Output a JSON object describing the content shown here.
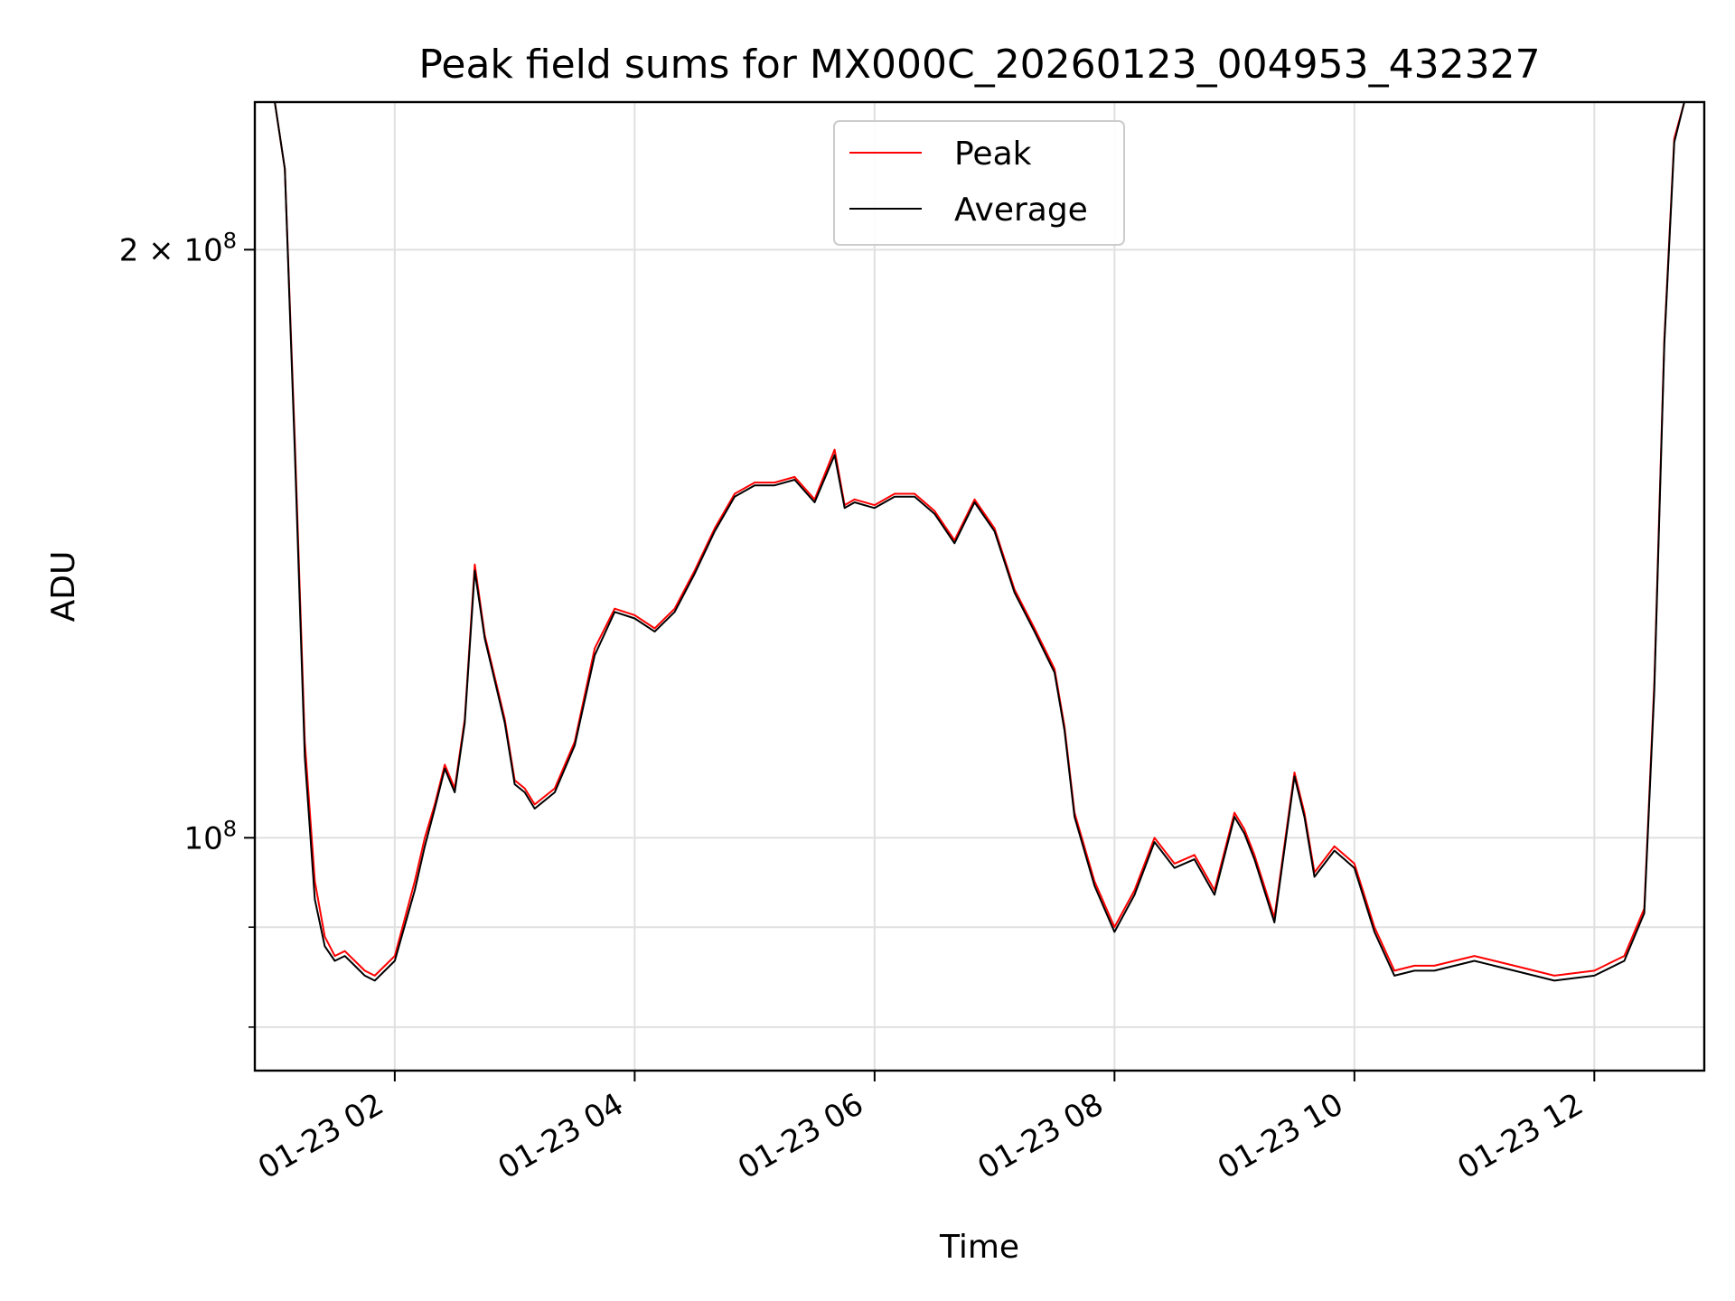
{
  "chart_data": {
    "type": "line",
    "title": "Peak field sums for MX000C_20260123_004953_432327",
    "xlabel": "Time",
    "ylabel": "ADU",
    "y_scale": "log",
    "ylim": [
      76000000,
      238000000
    ],
    "xlim": [
      "2026-01-23 00:50",
      "2026-01-23 12:55"
    ],
    "grid": true,
    "legend_position": "upper center",
    "x_ticks": [
      {
        "value": "2026-01-23 02:00",
        "label": "01-23 02"
      },
      {
        "value": "2026-01-23 04:00",
        "label": "01-23 04"
      },
      {
        "value": "2026-01-23 06:00",
        "label": "01-23 06"
      },
      {
        "value": "2026-01-23 08:00",
        "label": "01-23 08"
      },
      {
        "value": "2026-01-23 10:00",
        "label": "01-23 10"
      },
      {
        "value": "2026-01-23 12:00",
        "label": "01-23 12"
      }
    ],
    "y_ticks": [
      {
        "value": 100000000,
        "base": "10",
        "exp": "8",
        "coef": ""
      },
      {
        "value": 200000000,
        "base": "10",
        "exp": "8",
        "coef": "2 × "
      }
    ],
    "y_minor_ticks": [
      80000000,
      90000000
    ],
    "series": [
      {
        "name": "Peak",
        "color": "#ff0000",
        "x": [
          "2026-01-23 00:50",
          "2026-01-23 01:00",
          "2026-01-23 01:05",
          "2026-01-23 01:10",
          "2026-01-23 01:15",
          "2026-01-23 01:20",
          "2026-01-23 01:25",
          "2026-01-23 01:30",
          "2026-01-23 01:35",
          "2026-01-23 01:40",
          "2026-01-23 01:45",
          "2026-01-23 01:50",
          "2026-01-23 02:00",
          "2026-01-23 02:10",
          "2026-01-23 02:15",
          "2026-01-23 02:20",
          "2026-01-23 02:25",
          "2026-01-23 02:30",
          "2026-01-23 02:35",
          "2026-01-23 02:40",
          "2026-01-23 02:45",
          "2026-01-23 02:55",
          "2026-01-23 03:00",
          "2026-01-23 03:05",
          "2026-01-23 03:10",
          "2026-01-23 03:20",
          "2026-01-23 03:30",
          "2026-01-23 03:40",
          "2026-01-23 03:50",
          "2026-01-23 04:00",
          "2026-01-23 04:10",
          "2026-01-23 04:20",
          "2026-01-23 04:30",
          "2026-01-23 04:40",
          "2026-01-23 04:50",
          "2026-01-23 05:00",
          "2026-01-23 05:10",
          "2026-01-23 05:20",
          "2026-01-23 05:30",
          "2026-01-23 05:40",
          "2026-01-23 05:45",
          "2026-01-23 05:50",
          "2026-01-23 06:00",
          "2026-01-23 06:10",
          "2026-01-23 06:20",
          "2026-01-23 06:30",
          "2026-01-23 06:40",
          "2026-01-23 06:50",
          "2026-01-23 07:00",
          "2026-01-23 07:10",
          "2026-01-23 07:20",
          "2026-01-23 07:30",
          "2026-01-23 07:35",
          "2026-01-23 07:40",
          "2026-01-23 07:50",
          "2026-01-23 08:00",
          "2026-01-23 08:10",
          "2026-01-23 08:20",
          "2026-01-23 08:30",
          "2026-01-23 08:40",
          "2026-01-23 08:50",
          "2026-01-23 09:00",
          "2026-01-23 09:05",
          "2026-01-23 09:10",
          "2026-01-23 09:20",
          "2026-01-23 09:30",
          "2026-01-23 09:35",
          "2026-01-23 09:40",
          "2026-01-23 09:50",
          "2026-01-23 09:55",
          "2026-01-23 10:00",
          "2026-01-23 10:10",
          "2026-01-23 10:20",
          "2026-01-23 10:30",
          "2026-01-23 10:40",
          "2026-01-23 11:00",
          "2026-01-23 11:20",
          "2026-01-23 11:40",
          "2026-01-23 12:00",
          "2026-01-23 12:15",
          "2026-01-23 12:25",
          "2026-01-23 12:30",
          "2026-01-23 12:35",
          "2026-01-23 12:40",
          "2026-01-23 12:45",
          "2026-01-23 12:55"
        ],
        "y": [
          238000000,
          238000000,
          220000000,
          160000000,
          112000000,
          95000000,
          89000000,
          87000000,
          87500000,
          86500000,
          85500000,
          85000000,
          87000000,
          95000000,
          100000000,
          104000000,
          109000000,
          106000000,
          115000000,
          138000000,
          127000000,
          115000000,
          107000000,
          106000000,
          104000000,
          106000000,
          112000000,
          125000000,
          131000000,
          130000000,
          128000000,
          131000000,
          137000000,
          144000000,
          150000000,
          152000000,
          152000000,
          153000000,
          149000000,
          158000000,
          148000000,
          149000000,
          148000000,
          150000000,
          150000000,
          147000000,
          142000000,
          149000000,
          144000000,
          134000000,
          128000000,
          122000000,
          114000000,
          103000000,
          95000000,
          90000000,
          94000000,
          100000000,
          97000000,
          98000000,
          94000000,
          103000000,
          101000000,
          98000000,
          91000000,
          108000000,
          103000000,
          96000000,
          99000000,
          98000000,
          97000000,
          90000000,
          85500000,
          86000000,
          86000000,
          87000000,
          86000000,
          85000000,
          85500000,
          87000000,
          92000000,
          120000000,
          180000000,
          228000000,
          238000000,
          238000000
        ]
      },
      {
        "name": "Average",
        "color": "#000000",
        "x": [
          "2026-01-23 00:50",
          "2026-01-23 01:00",
          "2026-01-23 01:05",
          "2026-01-23 01:10",
          "2026-01-23 01:15",
          "2026-01-23 01:20",
          "2026-01-23 01:25",
          "2026-01-23 01:30",
          "2026-01-23 01:35",
          "2026-01-23 01:40",
          "2026-01-23 01:45",
          "2026-01-23 01:50",
          "2026-01-23 02:00",
          "2026-01-23 02:10",
          "2026-01-23 02:15",
          "2026-01-23 02:20",
          "2026-01-23 02:25",
          "2026-01-23 02:30",
          "2026-01-23 02:35",
          "2026-01-23 02:40",
          "2026-01-23 02:45",
          "2026-01-23 02:55",
          "2026-01-23 03:00",
          "2026-01-23 03:05",
          "2026-01-23 03:10",
          "2026-01-23 03:20",
          "2026-01-23 03:30",
          "2026-01-23 03:40",
          "2026-01-23 03:50",
          "2026-01-23 04:00",
          "2026-01-23 04:10",
          "2026-01-23 04:20",
          "2026-01-23 04:30",
          "2026-01-23 04:40",
          "2026-01-23 04:50",
          "2026-01-23 05:00",
          "2026-01-23 05:10",
          "2026-01-23 05:20",
          "2026-01-23 05:30",
          "2026-01-23 05:40",
          "2026-01-23 05:45",
          "2026-01-23 05:50",
          "2026-01-23 06:00",
          "2026-01-23 06:10",
          "2026-01-23 06:20",
          "2026-01-23 06:30",
          "2026-01-23 06:40",
          "2026-01-23 06:50",
          "2026-01-23 07:00",
          "2026-01-23 07:10",
          "2026-01-23 07:20",
          "2026-01-23 07:30",
          "2026-01-23 07:35",
          "2026-01-23 07:40",
          "2026-01-23 07:50",
          "2026-01-23 08:00",
          "2026-01-23 08:10",
          "2026-01-23 08:20",
          "2026-01-23 08:30",
          "2026-01-23 08:40",
          "2026-01-23 08:50",
          "2026-01-23 09:00",
          "2026-01-23 09:05",
          "2026-01-23 09:10",
          "2026-01-23 09:20",
          "2026-01-23 09:30",
          "2026-01-23 09:35",
          "2026-01-23 09:40",
          "2026-01-23 09:50",
          "2026-01-23 09:55",
          "2026-01-23 10:00",
          "2026-01-23 10:10",
          "2026-01-23 10:20",
          "2026-01-23 10:30",
          "2026-01-23 10:40",
          "2026-01-23 11:00",
          "2026-01-23 11:20",
          "2026-01-23 11:40",
          "2026-01-23 12:00",
          "2026-01-23 12:15",
          "2026-01-23 12:25",
          "2026-01-23 12:30",
          "2026-01-23 12:35",
          "2026-01-23 12:40",
          "2026-01-23 12:45",
          "2026-01-23 12:55"
        ],
        "y": [
          238000000,
          238000000,
          220000000,
          158000000,
          110000000,
          93000000,
          88000000,
          86500000,
          87000000,
          86000000,
          85000000,
          84500000,
          86500000,
          94000000,
          99000000,
          103500000,
          108500000,
          105500000,
          114500000,
          137000000,
          126500000,
          114500000,
          106500000,
          105500000,
          103500000,
          105500000,
          111500000,
          124000000,
          130500000,
          129500000,
          127500000,
          130500000,
          136500000,
          143500000,
          149500000,
          151500000,
          151500000,
          152500000,
          148500000,
          157000000,
          147500000,
          148500000,
          147500000,
          149500000,
          149500000,
          146500000,
          141500000,
          148500000,
          143500000,
          133500000,
          127500000,
          121500000,
          113500000,
          102500000,
          94500000,
          89500000,
          93500000,
          99500000,
          96500000,
          97500000,
          93500000,
          102500000,
          100500000,
          97500000,
          90500000,
          107500000,
          102500000,
          95500000,
          98500000,
          97500000,
          96500000,
          89500000,
          85000000,
          85500000,
          85500000,
          86500000,
          85500000,
          84500000,
          85000000,
          86500000,
          91500000,
          119000000,
          179000000,
          227000000,
          238000000,
          238000000
        ]
      }
    ]
  }
}
